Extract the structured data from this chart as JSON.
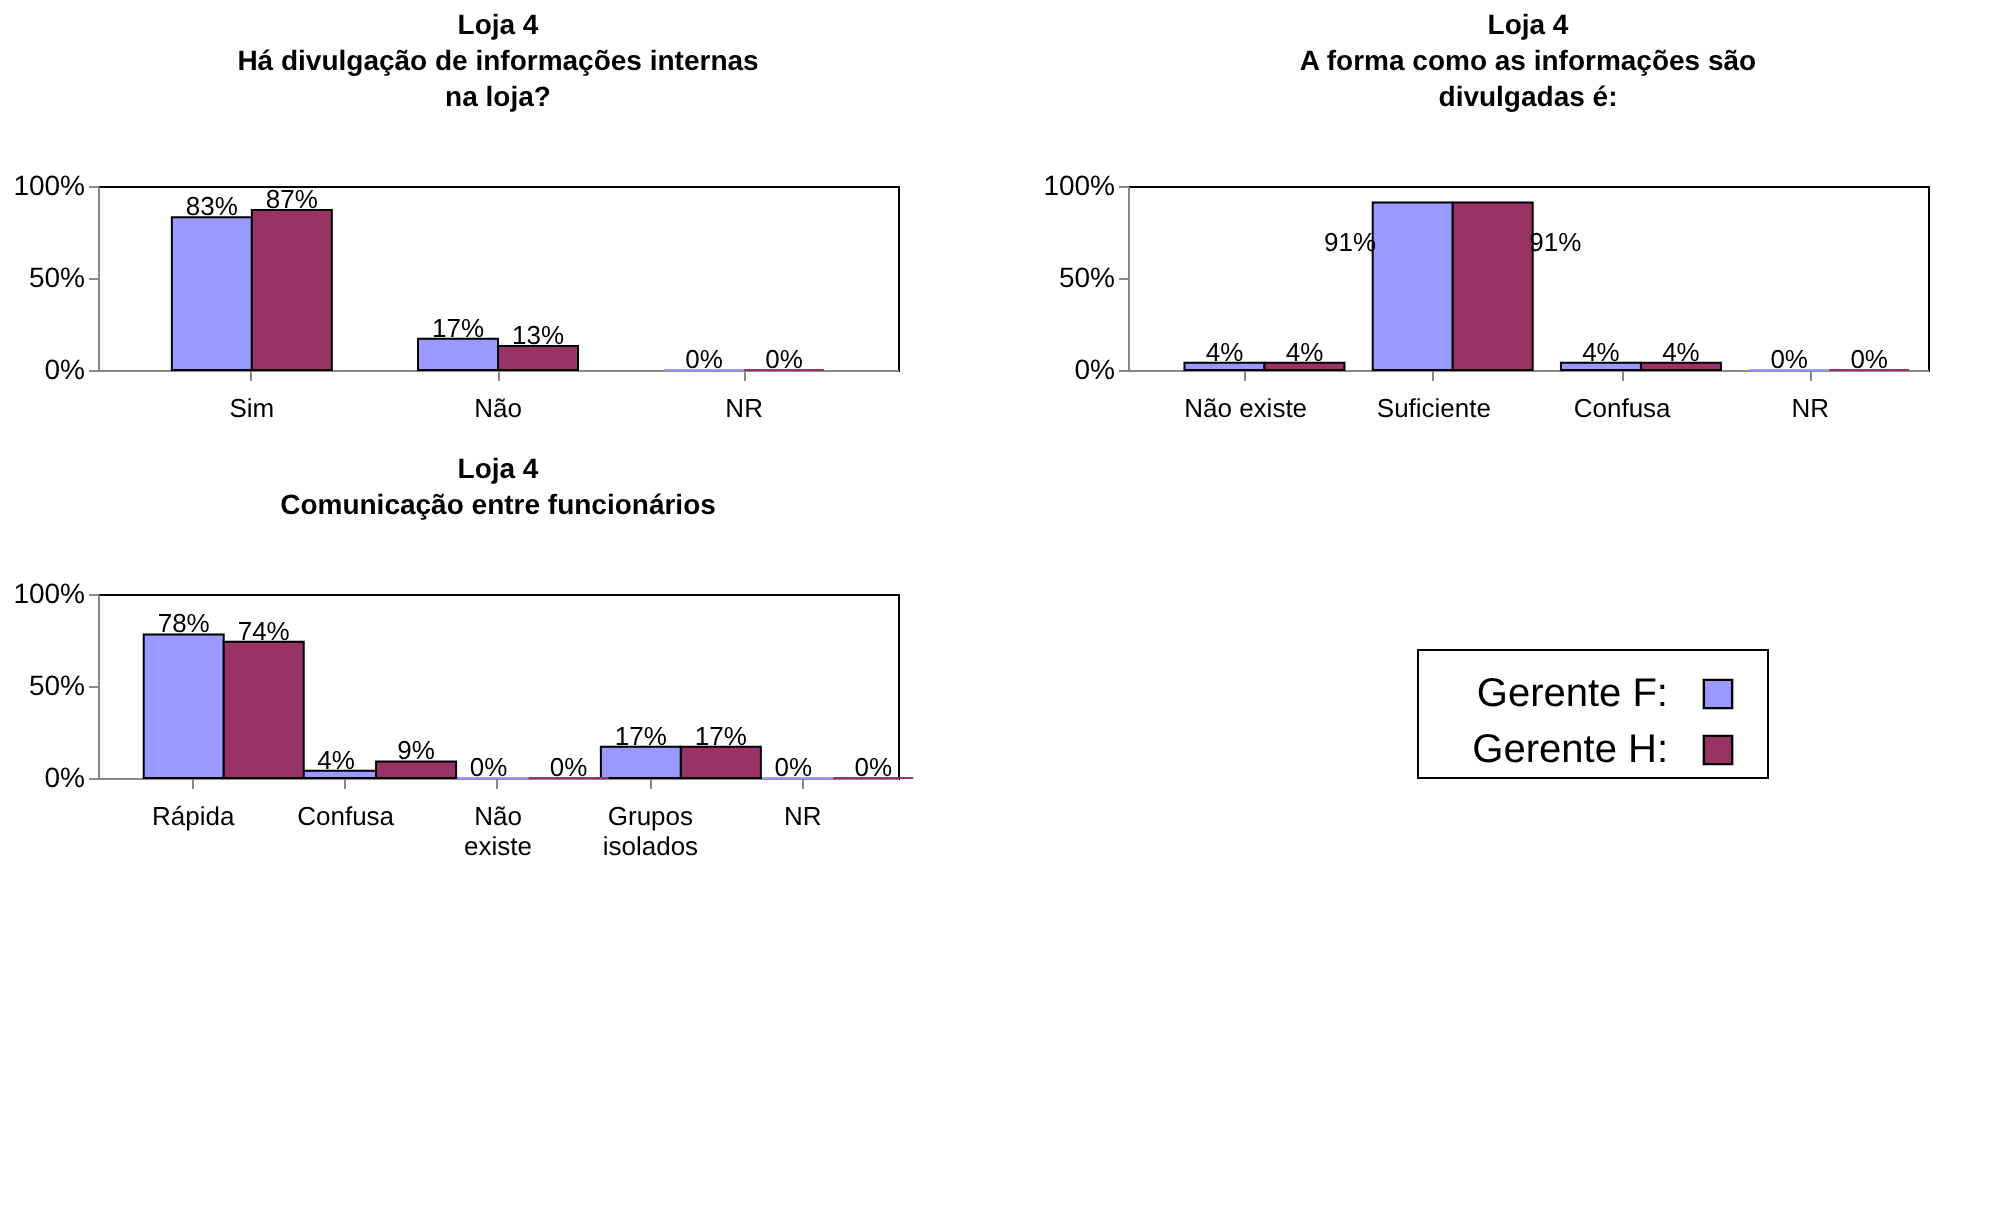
{
  "chart_data": [
    {
      "type": "bar",
      "title": "Loja 4",
      "subtitle": "Há divulgação de informações internas na loja?",
      "categories": [
        "Sim",
        "Não",
        "NR"
      ],
      "ylim": [
        0,
        100
      ],
      "yticks": [
        {
          "value": 0,
          "label": "0%"
        },
        {
          "value": 50,
          "label": "50%"
        },
        {
          "value": 100,
          "label": "100%"
        }
      ],
      "grid": false,
      "legend": false,
      "series": [
        {
          "color": "#9999ff",
          "values": [
            83,
            17,
            0
          ],
          "value_labels": [
            "83%",
            "17%",
            "0%"
          ]
        },
        {
          "color": "#993366",
          "values": [
            87,
            13,
            0
          ],
          "value_labels": [
            "87%",
            "13%",
            "0%"
          ]
        }
      ]
    },
    {
      "type": "bar",
      "title": "Loja 4",
      "subtitle": "A forma como as informações são divulgadas é:",
      "categories": [
        "Não existe",
        "Suficiente",
        "Confusa",
        "NR"
      ],
      "ylim": [
        0,
        100
      ],
      "yticks": [
        {
          "value": 0,
          "label": "0%"
        },
        {
          "value": 50,
          "label": "50%"
        },
        {
          "value": 100,
          "label": "100%"
        }
      ],
      "grid": false,
      "legend": false,
      "series": [
        {
          "color": "#9999ff",
          "values": [
            4,
            91,
            4,
            0
          ],
          "value_labels": [
            "4%",
            "91%",
            "4%",
            "0%"
          ]
        },
        {
          "color": "#993366",
          "values": [
            4,
            91,
            4,
            0
          ],
          "value_labels": [
            "4%",
            "91%",
            "4%",
            "0%"
          ]
        }
      ]
    },
    {
      "type": "bar",
      "title": "Loja 4",
      "subtitle": "Comunicação entre funcionários",
      "categories": [
        "Rápida",
        "Confusa",
        "Não existe",
        "Grupos isolados",
        "NR"
      ],
      "ylim": [
        0,
        100
      ],
      "yticks": [
        {
          "value": 0,
          "label": "0%"
        },
        {
          "value": 50,
          "label": "50%"
        },
        {
          "value": 100,
          "label": "100%"
        }
      ],
      "grid": false,
      "legend": "bottom right",
      "series": [
        {
          "name": "Gerente F:",
          "color": "#9999ff",
          "values": [
            78,
            4,
            0,
            17,
            0
          ],
          "value_labels": [
            "78%",
            "4%",
            "0%",
            "17%",
            "0%"
          ]
        },
        {
          "name": "Gerente H:",
          "color": "#993366",
          "values": [
            74,
            9,
            0,
            17,
            0
          ],
          "value_labels": [
            "74%",
            "9%",
            "0%",
            "17%",
            "0%"
          ]
        }
      ]
    }
  ]
}
